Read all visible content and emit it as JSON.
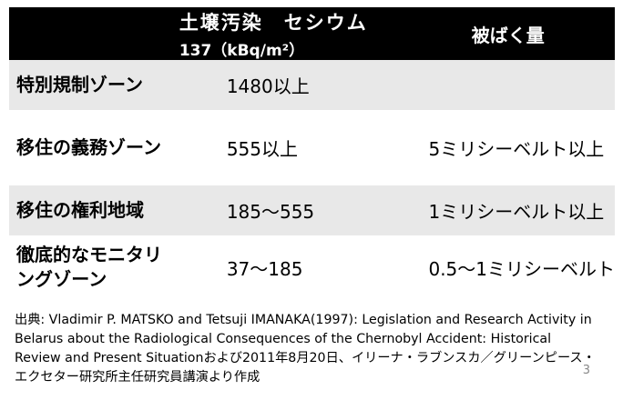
{
  "header": {
    "col2_line1": "土壌汚染　セシウム",
    "col2_line2": "137（kBq/m²）",
    "col3": "被ばく量"
  },
  "rows": [
    {
      "zone": "特別規制ゾーン",
      "contamination": "1480以上",
      "dose": ""
    },
    {
      "zone": "移住の義務ゾーン",
      "contamination": "555以上",
      "dose": "5ミリシーベルト以上"
    },
    {
      "zone": "移住の権利地域",
      "contamination": "185〜555",
      "dose": "1ミリシーベルト以上"
    },
    {
      "zone": "徹底的なモニタリングゾーン",
      "contamination": "37〜185",
      "dose": "0.5〜1ミリシーベルト"
    }
  ],
  "source": {
    "label": "出典",
    "text": ": Vladimir P. MATSKO and Tetsuji IMANAKA(1997): Legislation and Research Activity in Belarus about the Radiological Consequences of the Chernobyl Accident: Historical Review and Present Situationおよび2011年8月20日、イリーナ・ラブンスカ／グリーンピース・エクセター研究所主任研究員講演より作成"
  },
  "page_number": "3"
}
